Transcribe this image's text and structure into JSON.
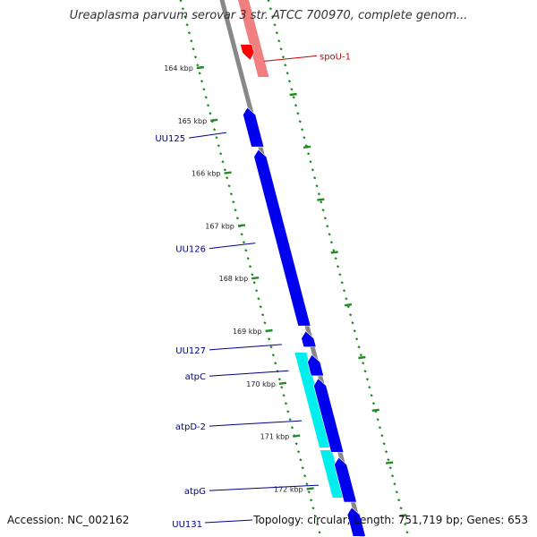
{
  "title": "Ureaplasma parvum serovar 3 str. ATCC 700970, complete genom...",
  "footer": {
    "accession": "Accession: NC_002162",
    "summary": "Topology: circular; Length: 751,719 bp; Genes: 653"
  },
  "ticks": [
    {
      "label": "164 kbp",
      "kbp": 164
    },
    {
      "label": "165 kbp",
      "kbp": 165
    },
    {
      "label": "166 kbp",
      "kbp": 166
    },
    {
      "label": "167 kbp",
      "kbp": 167
    },
    {
      "label": "168 kbp",
      "kbp": 168
    },
    {
      "label": "169 kbp",
      "kbp": 169
    },
    {
      "label": "170 kbp",
      "kbp": 170
    },
    {
      "label": "171 kbp",
      "kbp": 171
    },
    {
      "label": "172 kbp",
      "kbp": 172
    }
  ],
  "genes": [
    {
      "name": "spoU-1",
      "start_kbp": 163.55,
      "end_kbp": 163.85,
      "strand": "reverse",
      "color": "#ff0000"
    },
    {
      "name": "UU125",
      "start_kbp": 164.75,
      "end_kbp": 165.5,
      "strand": "forward",
      "color": "#0000ee"
    },
    {
      "name": "UU126",
      "start_kbp": 165.55,
      "end_kbp": 168.9,
      "strand": "forward",
      "color": "#0000ee"
    },
    {
      "name": "UU127",
      "start_kbp": 169.0,
      "end_kbp": 169.3,
      "strand": "forward",
      "color": "#0000ee"
    },
    {
      "name": "atpC",
      "start_kbp": 169.45,
      "end_kbp": 169.85,
      "strand": "forward",
      "color": "#0000ee"
    },
    {
      "name": "atpD-2",
      "start_kbp": 169.9,
      "end_kbp": 171.3,
      "strand": "forward",
      "color": "#0000ee"
    },
    {
      "name": "atpG",
      "start_kbp": 171.4,
      "end_kbp": 172.25,
      "strand": "forward",
      "color": "#0000ee"
    },
    {
      "name": "UU131",
      "start_kbp": 172.35,
      "end_kbp": 172.9,
      "strand": "forward",
      "color": "#0000ee"
    }
  ],
  "colors": {
    "backbone": "#888888",
    "tick": "#228b22",
    "forward_gene": "#0000ee",
    "reverse_gene": "#ff0000",
    "cds_track": "#00eeee",
    "label_forward": "#00008b",
    "label_reverse": "#cc0000"
  }
}
